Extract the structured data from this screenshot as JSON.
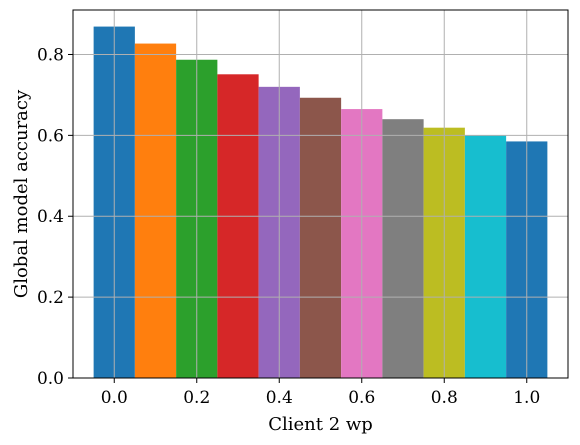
{
  "chart_data": {
    "type": "bar",
    "title": "",
    "xlabel": "Client 2 wp",
    "ylabel": "Global model accuracy",
    "x": [
      0.0,
      0.1,
      0.2,
      0.3,
      0.4,
      0.5,
      0.6,
      0.7,
      0.8,
      0.9,
      1.0
    ],
    "values": [
      0.869,
      0.827,
      0.787,
      0.751,
      0.72,
      0.693,
      0.665,
      0.64,
      0.619,
      0.6,
      0.585
    ],
    "colors": [
      "#1f77b4",
      "#ff7f0e",
      "#2ca02c",
      "#d62728",
      "#9467bd",
      "#8c564b",
      "#e377c2",
      "#7f7f7f",
      "#bcbd22",
      "#17becf",
      "#1f77b4"
    ],
    "bar_width": 0.1,
    "xlim": [
      -0.1,
      1.1
    ],
    "ylim": [
      0.0,
      0.91
    ],
    "xticks": [
      0.0,
      0.2,
      0.4,
      0.6,
      0.8,
      1.0
    ],
    "xtick_labels": [
      "0.0",
      "0.2",
      "0.4",
      "0.6",
      "0.8",
      "1.0"
    ],
    "yticks": [
      0.0,
      0.2,
      0.4,
      0.6,
      0.8
    ],
    "ytick_labels": [
      "0.0",
      "0.2",
      "0.4",
      "0.6",
      "0.8"
    ],
    "grid": true,
    "legend": null
  }
}
